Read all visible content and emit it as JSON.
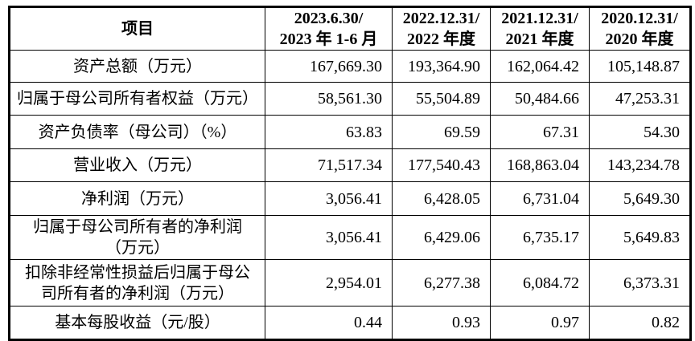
{
  "table": {
    "header": {
      "item_label": "项目",
      "columns": [
        {
          "line1": "2023.6.30/",
          "line2": "2023 年 1-6 月"
        },
        {
          "line1": "2022.12.31/",
          "line2": "2022 年度"
        },
        {
          "line1": "2021.12.31/",
          "line2": "2021 年度"
        },
        {
          "line1": "2020.12.31/",
          "line2": "2020 年度"
        }
      ]
    },
    "rows": [
      {
        "label": "资产总额（万元）",
        "values": [
          "167,669.30",
          "193,364.90",
          "162,064.42",
          "105,148.87"
        ]
      },
      {
        "label": "归属于母公司所有者权益（万元）",
        "values": [
          "58,561.30",
          "55,504.89",
          "50,484.66",
          "47,253.31"
        ]
      },
      {
        "label": "资产负债率（母公司）（%）",
        "values": [
          "63.83",
          "69.59",
          "67.31",
          "54.30"
        ]
      },
      {
        "label": "营业收入（万元）",
        "values": [
          "71,517.34",
          "177,540.43",
          "168,863.04",
          "143,234.78"
        ]
      },
      {
        "label": "净利润（万元）",
        "values": [
          "3,056.41",
          "6,428.05",
          "6,731.04",
          "5,649.30"
        ]
      },
      {
        "label": "归属于母公司所有者的净利润\n（万元）",
        "values": [
          "3,056.41",
          "6,429.06",
          "6,735.17",
          "5,649.83"
        ]
      },
      {
        "label": "扣除非经常性损益后归属于母公\n司所有者的净利润（万元）",
        "values": [
          "2,954.01",
          "6,277.38",
          "6,084.72",
          "6,373.31"
        ]
      },
      {
        "label": "基本每股收益（元/股）",
        "values": [
          "0.44",
          "0.93",
          "0.97",
          "0.82"
        ]
      }
    ]
  },
  "colors": {
    "border": "#000000",
    "text": "#000000",
    "background": "#ffffff"
  }
}
